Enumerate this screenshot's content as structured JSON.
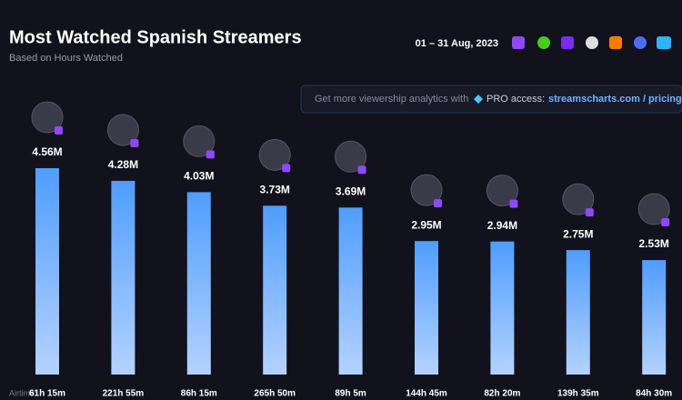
{
  "chart_data": {
    "type": "bar",
    "title": "Most Watched Spanish Streamers",
    "subtitle": "Based on Hours Watched",
    "date_range": "01 – 31 Aug, 2023",
    "banner": {
      "text": "Get more viewership analytics with",
      "pro": "PRO access:",
      "link": "streamscharts.com / pricing"
    },
    "values": [
      4.56,
      4.28,
      4.03,
      3.73,
      3.69,
      2.95,
      2.94,
      2.75,
      2.53
    ],
    "value_labels": [
      "4.56M",
      "4.28M",
      "4.03M",
      "3.73M",
      "3.69M",
      "2.95M",
      "2.94M",
      "2.75M",
      "2.53M"
    ],
    "airtime_label": "Airtime:",
    "airtime": [
      "61h 15m",
      "221h 55m",
      "86h 15m",
      "265h 50m",
      "89h 5m",
      "144h 45m",
      "82h 20m",
      "139h 35m",
      "84h 30m"
    ],
    "color": "#5aa8ff"
  }
}
